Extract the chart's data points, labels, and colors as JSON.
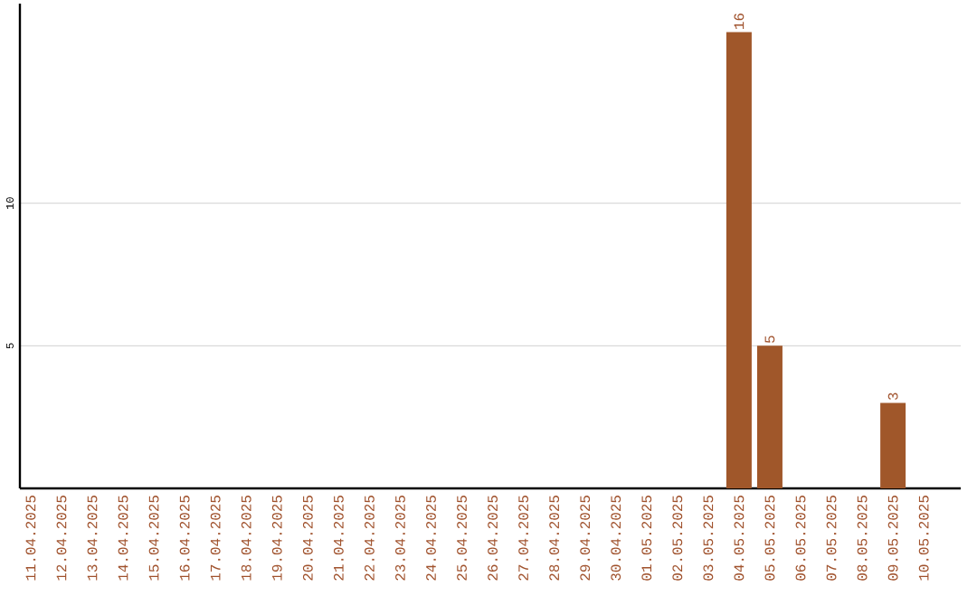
{
  "chart_data": {
    "type": "bar",
    "categories": [
      "11.04.2025",
      "12.04.2025",
      "13.04.2025",
      "14.04.2025",
      "15.04.2025",
      "16.04.2025",
      "17.04.2025",
      "18.04.2025",
      "19.04.2025",
      "20.04.2025",
      "21.04.2025",
      "22.04.2025",
      "23.04.2025",
      "24.04.2025",
      "25.04.2025",
      "26.04.2025",
      "27.04.2025",
      "28.04.2025",
      "29.04.2025",
      "30.04.2025",
      "01.05.2025",
      "02.05.2025",
      "03.05.2025",
      "04.05.2025",
      "05.05.2025",
      "06.05.2025",
      "07.05.2025",
      "08.05.2025",
      "09.05.2025",
      "10.05.2025"
    ],
    "values": [
      0,
      0,
      0,
      0,
      0,
      0,
      0,
      0,
      0,
      0,
      0,
      0,
      0,
      0,
      0,
      0,
      0,
      0,
      0,
      0,
      0,
      0,
      0,
      16,
      5,
      0,
      0,
      0,
      3,
      0
    ],
    "value_labels": [
      null,
      null,
      null,
      null,
      null,
      null,
      null,
      null,
      null,
      null,
      null,
      null,
      null,
      null,
      null,
      null,
      null,
      null,
      null,
      null,
      null,
      null,
      null,
      "16",
      "5",
      null,
      null,
      null,
      "3",
      null
    ],
    "color": "#a0572a",
    "ylim": [
      0,
      17
    ],
    "yticks": [
      5,
      10
    ],
    "grid": "y"
  }
}
